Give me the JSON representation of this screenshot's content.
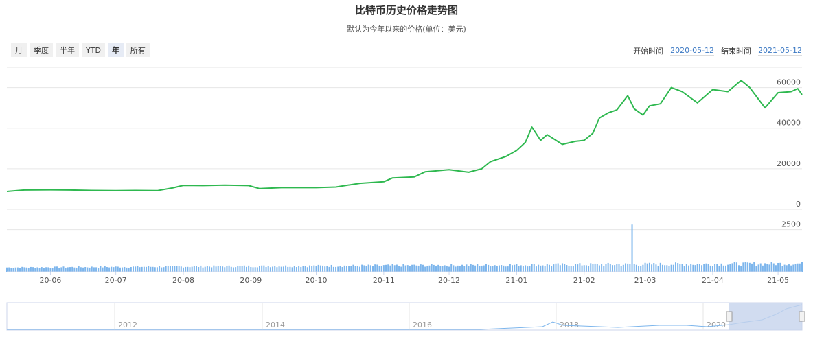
{
  "title": "比特币历史价格走势图",
  "subtitle": "默认为今年以来的价格(单位：美元)",
  "range_buttons": [
    "月",
    "季度",
    "半年",
    "YTD",
    "年",
    "所有"
  ],
  "active_range": "年",
  "date_range": {
    "start_label": "开始时间",
    "start_value": "2020-05-12",
    "end_label": "结束时间",
    "end_value": "2021-05-12"
  },
  "colors": {
    "price_line": "#2eb84f",
    "volume_bar": "#7cb5ec",
    "navigator_fill": "#c6d3ec"
  },
  "chart_data": {
    "type": "line",
    "price_axis": {
      "ticks": [
        0,
        20000,
        40000,
        60000
      ],
      "ylim": [
        0,
        70000
      ]
    },
    "volume_axis": {
      "ticks": [
        2500
      ],
      "ylim": [
        0,
        3500
      ]
    },
    "x_ticks": [
      "20-06",
      "20-07",
      "20-08",
      "20-09",
      "20-10",
      "20-11",
      "20-12",
      "21-01",
      "21-02",
      "21-03",
      "21-04",
      "21-05"
    ],
    "price_series": {
      "x": [
        "2020-05-12",
        "2020-05-20",
        "2020-06-01",
        "2020-06-10",
        "2020-06-20",
        "2020-07-01",
        "2020-07-10",
        "2020-07-20",
        "2020-07-27",
        "2020-08-01",
        "2020-08-10",
        "2020-08-20",
        "2020-08-31",
        "2020-09-05",
        "2020-09-15",
        "2020-09-25",
        "2020-10-01",
        "2020-10-10",
        "2020-10-21",
        "2020-11-01",
        "2020-11-05",
        "2020-11-15",
        "2020-11-20",
        "2020-12-01",
        "2020-12-10",
        "2020-12-16",
        "2020-12-20",
        "2020-12-27",
        "2021-01-01",
        "2021-01-05",
        "2021-01-08",
        "2021-01-12",
        "2021-01-15",
        "2021-01-22",
        "2021-01-28",
        "2021-02-01",
        "2021-02-05",
        "2021-02-08",
        "2021-02-12",
        "2021-02-16",
        "2021-02-21",
        "2021-02-24",
        "2021-02-28",
        "2021-03-03",
        "2021-03-08",
        "2021-03-13",
        "2021-03-18",
        "2021-03-25",
        "2021-04-01",
        "2021-04-08",
        "2021-04-14",
        "2021-04-18",
        "2021-04-25",
        "2021-05-01",
        "2021-05-07",
        "2021-05-10",
        "2021-05-12"
      ],
      "y": [
        8800,
        9500,
        9600,
        9500,
        9300,
        9200,
        9300,
        9200,
        10500,
        11800,
        11700,
        11900,
        11700,
        10200,
        10700,
        10700,
        10700,
        11000,
        12800,
        13600,
        15500,
        16000,
        18500,
        19500,
        18300,
        20000,
        23500,
        26000,
        29000,
        33000,
        40500,
        34000,
        36800,
        32000,
        33500,
        34000,
        37500,
        45000,
        47500,
        49000,
        56000,
        49500,
        46500,
        51000,
        52000,
        60000,
        58000,
        52500,
        59000,
        58000,
        63500,
        60000,
        50000,
        57500,
        58000,
        59500,
        56500
      ]
    },
    "volume_series": {
      "note_type": "bar",
      "spike_date": "2021-02-23",
      "spike_value": 2800,
      "typical_value_range": [
        150,
        600
      ]
    },
    "navigator_ticks": [
      "2012",
      "2014",
      "2016",
      "2018",
      "2020"
    ]
  }
}
